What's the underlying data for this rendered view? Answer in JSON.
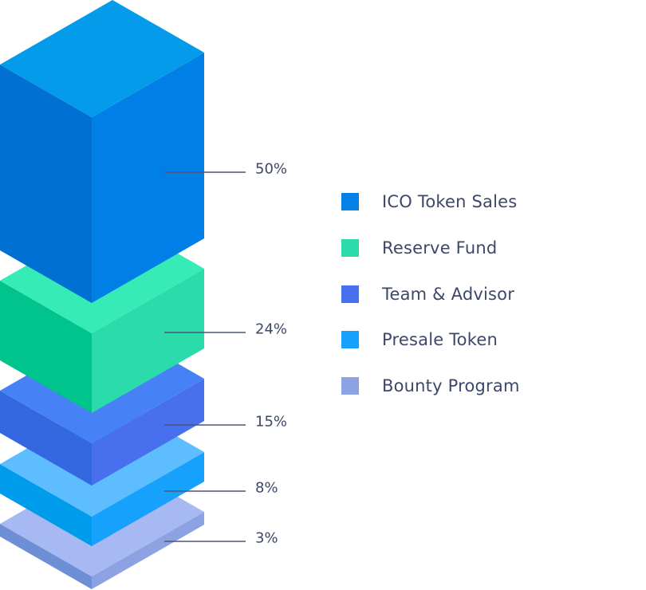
{
  "chart_data": {
    "type": "bar",
    "style": "isometric stacked blocks",
    "categories": [
      "ICO Token Sales",
      "Reserve Fund",
      "Team & Advisor",
      "Presale Token",
      "Bounty Program"
    ],
    "values": [
      50,
      24,
      15,
      8,
      3
    ],
    "data_labels": [
      "50%",
      "24%",
      "15%",
      "8%",
      "3%"
    ],
    "unit": "%",
    "legend_position": "right",
    "colors": {
      "ICO Token Sales": {
        "top": "#049CEA",
        "left": "#0070D2",
        "right": "#0080E6",
        "legend": "#0480E6"
      },
      "Reserve Fund": {
        "top": "#36EBB5",
        "left": "#00C48C",
        "right": "#2BDBA9",
        "legend": "#2BDBA9"
      },
      "Team & Advisor": {
        "top": "#4682F5",
        "left": "#3468E0",
        "right": "#4870EE",
        "legend": "#4870EE"
      },
      "Presale Token": {
        "top": "#5EBDFF",
        "left": "#009CEC",
        "right": "#16A2FC",
        "legend": "#16A2FC"
      },
      "Bounty Program": {
        "top": "#A6B9F2",
        "left": "#6E8ED6",
        "right": "#8DA2E2",
        "legend": "#8DA2E2"
      }
    },
    "leader_line_color": "#4A5578"
  }
}
